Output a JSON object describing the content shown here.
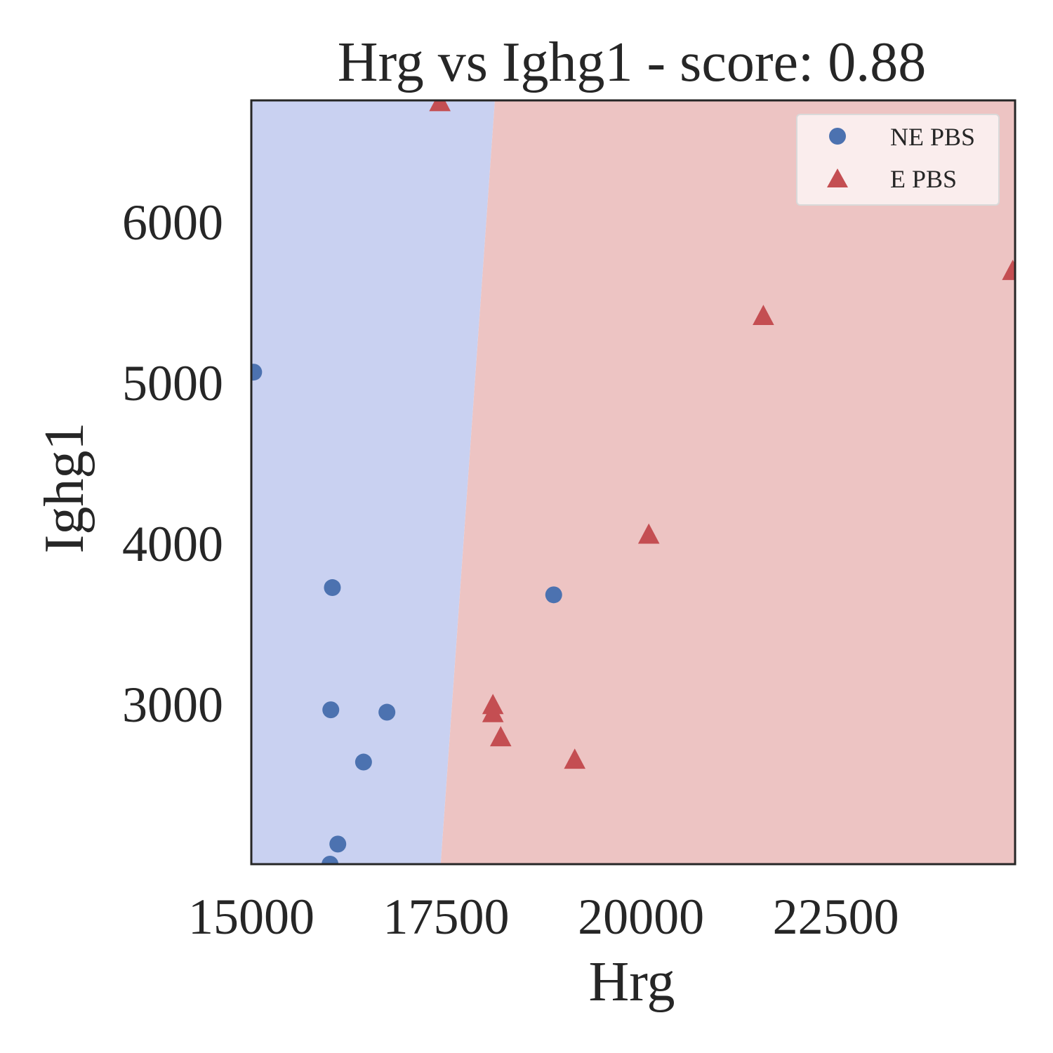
{
  "chart_data": {
    "type": "scatter",
    "title": "Hrg vs Ighg1 - score: 0.88",
    "xlabel": "Hrg",
    "ylabel": "Ighg1",
    "xlim": [
      15000,
      24800
    ],
    "ylim": [
      2005,
      6755
    ],
    "xticks": [
      15000,
      17500,
      20000,
      22500
    ],
    "yticks": [
      3000,
      4000,
      5000,
      6000
    ],
    "grid": false,
    "legend_position": "top-right",
    "background_regions": [
      {
        "class": "NE PBS",
        "color": "#c9d1f1"
      },
      {
        "class": "E PBS",
        "color": "#edc4c3"
      }
    ],
    "decision_boundary": [
      {
        "x": 18125,
        "y": 6755
      },
      {
        "x": 17430,
        "y": 2005
      }
    ],
    "series": [
      {
        "name": "NE PBS",
        "marker": "circle",
        "color": "#4c72b0",
        "points": [
          {
            "x": 15030,
            "y": 5065
          },
          {
            "x": 16040,
            "y": 3725
          },
          {
            "x": 16020,
            "y": 2965
          },
          {
            "x": 16740,
            "y": 2950
          },
          {
            "x": 16440,
            "y": 2640
          },
          {
            "x": 16110,
            "y": 2130
          },
          {
            "x": 16010,
            "y": 2005
          },
          {
            "x": 18880,
            "y": 3680
          }
        ]
      },
      {
        "name": "E PBS",
        "marker": "triangle",
        "color": "#c44e52",
        "points": [
          {
            "x": 17420,
            "y": 6740
          },
          {
            "x": 24770,
            "y": 5690
          },
          {
            "x": 21570,
            "y": 5410
          },
          {
            "x": 20100,
            "y": 4050
          },
          {
            "x": 18100,
            "y": 2990
          },
          {
            "x": 18100,
            "y": 2940
          },
          {
            "x": 18200,
            "y": 2790
          },
          {
            "x": 19150,
            "y": 2650
          }
        ]
      }
    ]
  }
}
